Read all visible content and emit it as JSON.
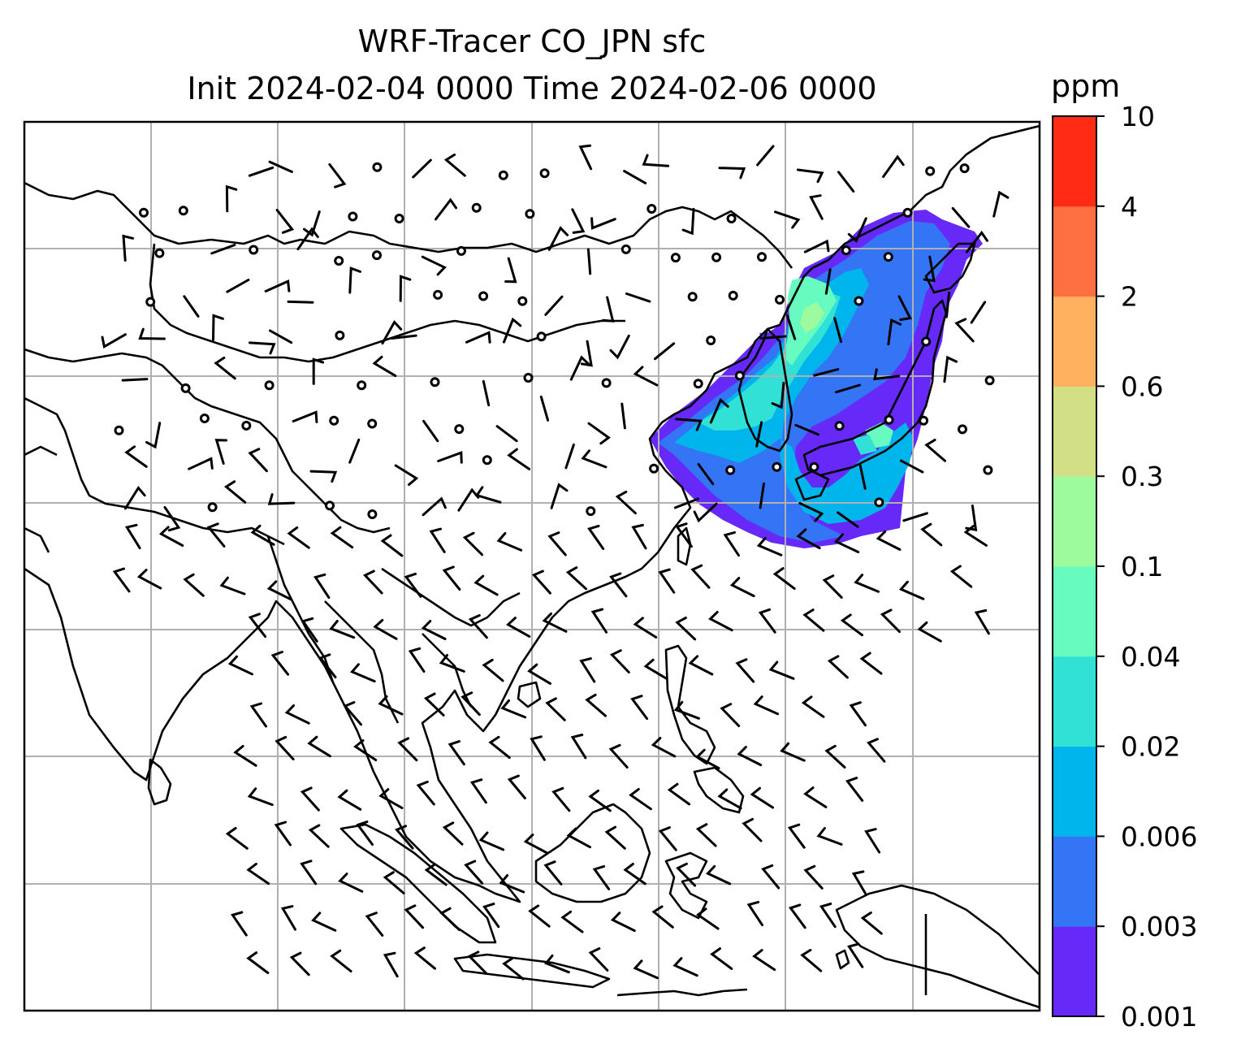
{
  "figure": {
    "title_line_1": "WRF-Tracer CO_JPN sfc",
    "title_line_2": "Init 2024-02-04 0000 Time 2024-02-06 0000"
  },
  "colorbar": {
    "unit": "ppm",
    "levels": [
      "0.001",
      "0.003",
      "0.006",
      "0.02",
      "0.04",
      "0.1",
      "0.3",
      "0.6",
      "2",
      "4",
      "10"
    ],
    "colors": [
      "#6629f7",
      "#3375f5",
      "#00b4ec",
      "#31e1d6",
      "#67fbbf",
      "#9dfb9d",
      "#d2df84",
      "#ffb160",
      "#ff7040",
      "#ff2b15"
    ]
  },
  "map": {
    "field": "CO_JPN surface tracer concentration",
    "gridlines": true,
    "wind_barbs": true,
    "plume_region": "East China Sea, Korea and Japan",
    "plume_colors": {
      "low": "#6629f7",
      "mid": "#3375f5",
      "cyan": "#00b4ec",
      "teal": "#31e1d6",
      "green": "#67fbbf",
      "light_green": "#9dfb9d"
    }
  }
}
